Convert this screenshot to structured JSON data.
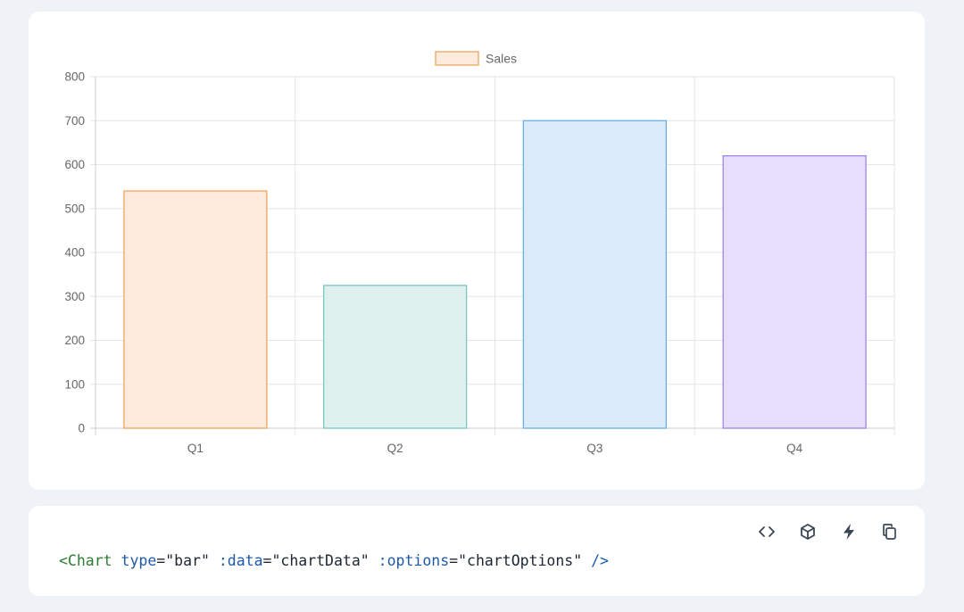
{
  "chart_data": {
    "type": "bar",
    "categories": [
      "Q1",
      "Q2",
      "Q3",
      "Q4"
    ],
    "series": [
      {
        "name": "Sales",
        "values": [
          540,
          325,
          700,
          620
        ]
      }
    ],
    "bar_fills": [
      "#fdecdc",
      "#dff1ef",
      "#dcebfa",
      "#e6defb"
    ],
    "bar_strokes": [
      "#f0a35e",
      "#7cc5c2",
      "#6aaee5",
      "#9d86e6"
    ],
    "legend_fill": "#fdecdc",
    "legend_stroke": "#f0a35e",
    "ylim": [
      0,
      800
    ],
    "yticks": [
      "0",
      "100",
      "200",
      "300",
      "400",
      "500",
      "600",
      "700",
      "800"
    ],
    "grid": true,
    "legend_position": "top-center"
  },
  "code": {
    "tag_open": "<Chart",
    "attr_type": "type",
    "val_type": "\"bar\"",
    "attr_data": ":data",
    "val_data": "\"chartData\"",
    "attr_options": ":options",
    "val_options": "\"chartOptions\"",
    "tag_close": "/>"
  },
  "toolbar": {
    "icons": [
      "code-icon",
      "cube-icon",
      "bolt-icon",
      "copy-icon"
    ]
  }
}
